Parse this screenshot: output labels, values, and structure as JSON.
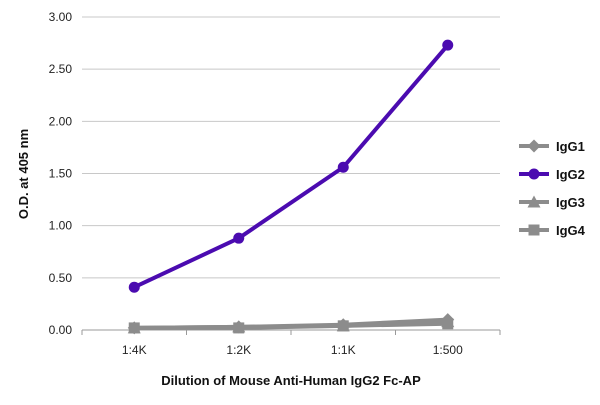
{
  "chart_data": {
    "type": "line",
    "xlabel": "Dilution of Mouse Anti-Human IgG2 Fc-AP",
    "ylabel": "O.D. at 405 nm",
    "categories": [
      "1:4K",
      "1:2K",
      "1:1K",
      "1:500"
    ],
    "ylim": [
      0,
      3.0
    ],
    "yticks": [
      "0.00",
      "0.50",
      "1.00",
      "1.50",
      "2.00",
      "2.50",
      "3.00"
    ],
    "grid": "horizontal",
    "legend_position": "right",
    "series": [
      {
        "name": "IgG1",
        "values": [
          0.02,
          0.03,
          0.05,
          0.1
        ],
        "color": "#8c8c8c",
        "marker": "diamond"
      },
      {
        "name": "IgG2",
        "values": [
          0.41,
          0.88,
          1.56,
          2.73
        ],
        "color": "#4b0bb0",
        "marker": "circle"
      },
      {
        "name": "IgG3",
        "values": [
          0.02,
          0.03,
          0.04,
          0.08
        ],
        "color": "#8c8c8c",
        "marker": "triangle"
      },
      {
        "name": "IgG4",
        "values": [
          0.02,
          0.02,
          0.04,
          0.06
        ],
        "color": "#8c8c8c",
        "marker": "square"
      }
    ]
  }
}
